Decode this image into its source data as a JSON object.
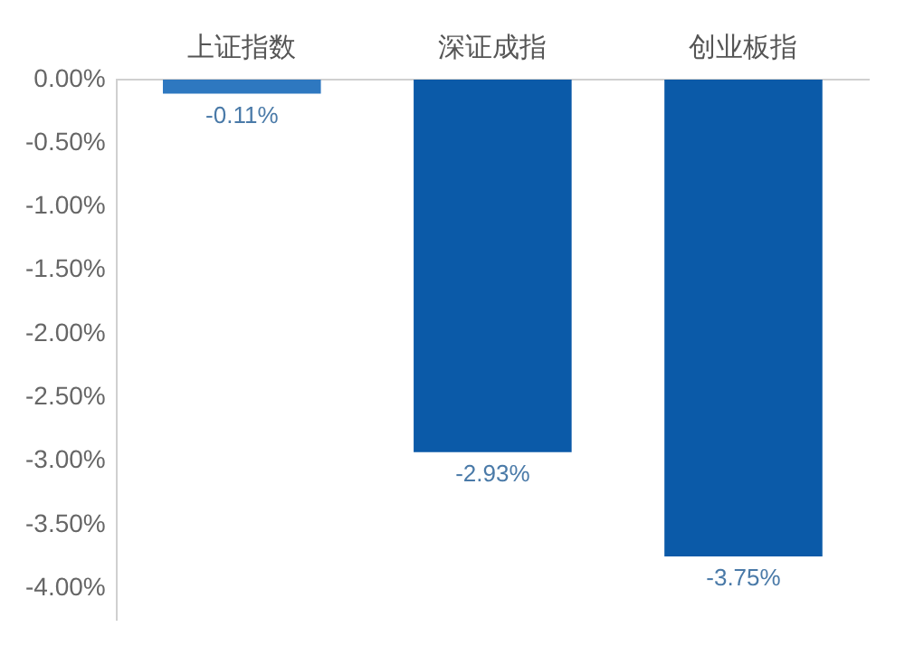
{
  "chart_data": {
    "type": "bar",
    "categories": [
      "上证指数",
      "深证成指",
      "创业板指"
    ],
    "values": [
      -0.11,
      -2.93,
      -3.75
    ],
    "colors": [
      "#2e78c0",
      "#0b5aa8",
      "#0b5aa8"
    ],
    "value_labels": [
      "-0.11%",
      "-2.93%",
      "-3.75%"
    ],
    "ylim": [
      -4.25,
      0
    ],
    "yticks": [
      {
        "value": 0,
        "label": "0.00%"
      },
      {
        "value": -0.5,
        "label": "-0.50%"
      },
      {
        "value": -1,
        "label": "-1.00%"
      },
      {
        "value": -1.5,
        "label": "-1.50%"
      },
      {
        "value": -2,
        "label": "-2.00%"
      },
      {
        "value": -2.5,
        "label": "-2.50%"
      },
      {
        "value": -3,
        "label": "-3.00%"
      },
      {
        "value": -3.5,
        "label": "-3.50%"
      },
      {
        "value": -4,
        "label": "-4.00%"
      }
    ],
    "grid": false
  }
}
